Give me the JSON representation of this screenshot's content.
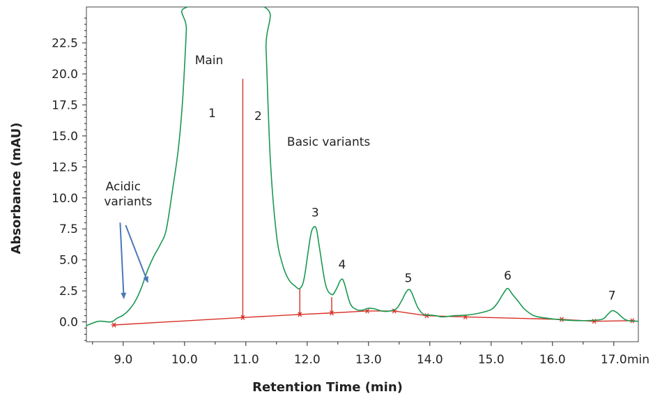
{
  "chart_data": {
    "type": "line",
    "xlabel": "Retention Time (min)",
    "ylabel": "Absorbance (mAU)",
    "x_unit": "min",
    "xlim": [
      8.4,
      17.4
    ],
    "ylim": [
      -1.6,
      25.4
    ],
    "x_ticks": [
      "9.0",
      "10.0",
      "11.0",
      "12.0",
      "13.0",
      "14.0",
      "15.0",
      "16.0",
      "17.0"
    ],
    "y_ticks": [
      "0.0",
      "2.5",
      "5.0",
      "7.5",
      "10.0",
      "12.5",
      "15.0",
      "17.5",
      "20.0",
      "22.5"
    ],
    "grid": false,
    "colors": {
      "trace": "#1a9850",
      "baseline": "#d73027",
      "arrow": "#4a78b8",
      "axis": "#222222"
    },
    "series": [
      {
        "x": [
          8.4,
          8.6,
          8.8,
          8.9,
          9.0,
          9.1,
          9.2,
          9.3,
          9.4,
          9.5,
          9.6,
          9.7,
          9.8,
          9.9,
          9.97,
          10.03,
          10.05,
          11.3,
          11.33,
          11.4,
          11.5,
          11.6,
          11.7,
          11.8,
          11.88,
          11.95,
          12.05,
          12.1,
          12.15,
          12.2,
          12.3,
          12.4,
          12.47,
          12.55,
          12.6,
          12.7,
          12.8,
          12.9,
          13.0,
          13.1,
          13.2,
          13.3,
          13.45,
          13.55,
          13.6,
          13.65,
          13.7,
          13.8,
          13.9,
          14.0,
          14.1,
          14.2,
          14.4,
          14.6,
          14.8,
          15.0,
          15.1,
          15.2,
          15.27,
          15.35,
          15.45,
          15.55,
          15.7,
          15.9,
          16.2,
          16.5,
          16.8,
          16.9,
          16.97,
          17.05,
          17.2,
          17.4
        ],
        "y": [
          -0.3,
          0.05,
          0.0,
          0.3,
          0.55,
          1.0,
          1.7,
          2.8,
          4.2,
          5.3,
          6.2,
          7.4,
          10.5,
          14.0,
          18.0,
          23.5,
          25.4,
          25.4,
          22.0,
          13.0,
          7.0,
          4.6,
          3.4,
          2.9,
          2.7,
          3.5,
          6.8,
          7.6,
          7.5,
          6.0,
          3.0,
          2.2,
          2.6,
          3.4,
          3.2,
          1.5,
          1.0,
          0.95,
          1.1,
          1.05,
          0.9,
          0.85,
          1.05,
          1.8,
          2.3,
          2.6,
          2.4,
          1.2,
          0.6,
          0.55,
          0.5,
          0.4,
          0.5,
          0.55,
          0.7,
          1.0,
          1.5,
          2.3,
          2.7,
          2.2,
          1.6,
          1.0,
          0.5,
          0.3,
          0.15,
          0.1,
          0.2,
          0.6,
          0.9,
          0.75,
          0.15,
          0.05
        ]
      }
    ],
    "peak_labels": [
      {
        "text": "1",
        "x": 10.45,
        "y": 16.5
      },
      {
        "text": "2",
        "x": 11.2,
        "y": 16.3
      },
      {
        "text": "3",
        "x": 12.13,
        "y": 8.5
      },
      {
        "text": "4",
        "x": 12.57,
        "y": 4.3
      },
      {
        "text": "5",
        "x": 13.65,
        "y": 3.2
      },
      {
        "text": "6",
        "x": 15.27,
        "y": 3.4
      },
      {
        "text": "7",
        "x": 16.97,
        "y": 1.8
      }
    ],
    "annotations": [
      {
        "text": "Main",
        "x": 10.4,
        "y": 20.8
      },
      {
        "text": "Basic variants",
        "x": 12.35,
        "y": 14.2
      },
      {
        "text": "Acidic",
        "x": 9.0,
        "y": 10.6
      },
      {
        "text": "variants",
        "x": 9.08,
        "y": 9.4
      }
    ],
    "baseline_points": [
      {
        "x": 8.85,
        "y": -0.25
      },
      {
        "x": 10.95,
        "y": 0.35
      },
      {
        "x": 11.88,
        "y": 0.6
      },
      {
        "x": 12.4,
        "y": 0.72
      },
      {
        "x": 12.98,
        "y": 0.88
      },
      {
        "x": 13.42,
        "y": 0.88
      },
      {
        "x": 13.95,
        "y": 0.5
      },
      {
        "x": 14.58,
        "y": 0.4
      },
      {
        "x": 16.15,
        "y": 0.2
      },
      {
        "x": 16.68,
        "y": 0.05
      },
      {
        "x": 17.3,
        "y": 0.1
      }
    ],
    "drop_lines": [
      {
        "x": 10.95,
        "y_top": 19.6,
        "y_bottom": 0.35
      },
      {
        "x": 11.88,
        "y_top": 2.7,
        "y_bottom": 0.6
      },
      {
        "x": 12.4,
        "y_top": 2.0,
        "y_bottom": 0.72
      }
    ],
    "arrows": [
      {
        "x1": 8.95,
        "y1": 8.0,
        "x2": 9.01,
        "y2": 1.9
      },
      {
        "x1": 9.04,
        "y1": 7.8,
        "x2": 9.4,
        "y2": 3.2
      }
    ]
  }
}
